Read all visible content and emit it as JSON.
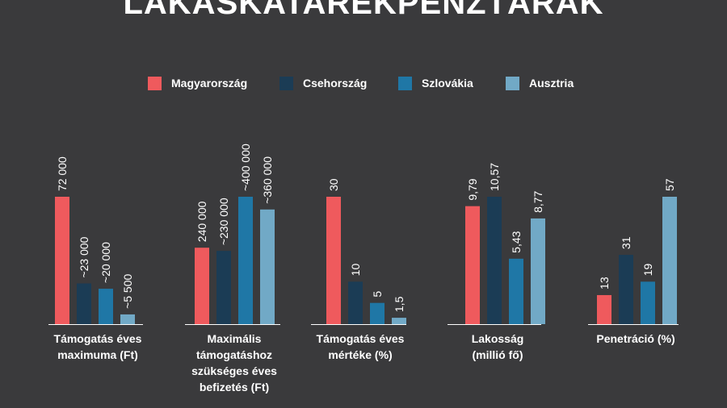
{
  "title": "LAKÁSKATARÉKPÉNZTÁRAK",
  "colors": {
    "background": "#3a3a3c",
    "text": "#ffffff",
    "baseline": "#ffffff"
  },
  "chart_data": {
    "type": "bar",
    "title": "LAKÁSKATARÉKPÉNZTÁRAK",
    "legend_position": "top",
    "grid": false,
    "series": [
      {
        "name": "Magyarország",
        "color": "#ef5a5d"
      },
      {
        "name": "Csehország",
        "color": "#1b3c55"
      },
      {
        "name": "Szlovákia",
        "color": "#1f77a6"
      },
      {
        "name": "Ausztria",
        "color": "#71a9c6"
      }
    ],
    "groups": [
      {
        "label": "Támogatás éves maximuma (Ft)",
        "label_lines": [
          "Támogatás éves",
          "maximuma (Ft)"
        ],
        "values": [
          72000,
          23000,
          20000,
          5500
        ],
        "value_labels": [
          "72 000",
          "~23 000",
          "~20 000",
          "~5 500"
        ]
      },
      {
        "label": "Maximális támogatáshoz szükséges éves befizetés (Ft)",
        "label_lines": [
          "Maximális",
          "támogatáshoz",
          "szükséges éves",
          "befizetés (Ft)"
        ],
        "values": [
          240000,
          230000,
          400000,
          360000
        ],
        "value_labels": [
          "240 000",
          "~230 000",
          "~400 000",
          "~360 000"
        ]
      },
      {
        "label": "Támogatás éves mértéke (%)",
        "label_lines": [
          "Támogatás éves",
          "mértéke (%)"
        ],
        "values": [
          30,
          10,
          5,
          1.5
        ],
        "value_labels": [
          "30",
          "10",
          "5",
          "1,5"
        ]
      },
      {
        "label": "Lakosság (millió fő)",
        "label_lines": [
          "Lakosság",
          "(millió fő)"
        ],
        "values": [
          9.79,
          10.57,
          5.43,
          8.77
        ],
        "value_labels": [
          "9,79",
          "10,57",
          "5,43",
          "8,77"
        ]
      },
      {
        "label": "Penetráció (%)",
        "label_lines": [
          "Penetráció (%)"
        ],
        "values": [
          13,
          31,
          19,
          57
        ],
        "value_labels": [
          "13",
          "31",
          "19",
          "57"
        ]
      }
    ]
  }
}
